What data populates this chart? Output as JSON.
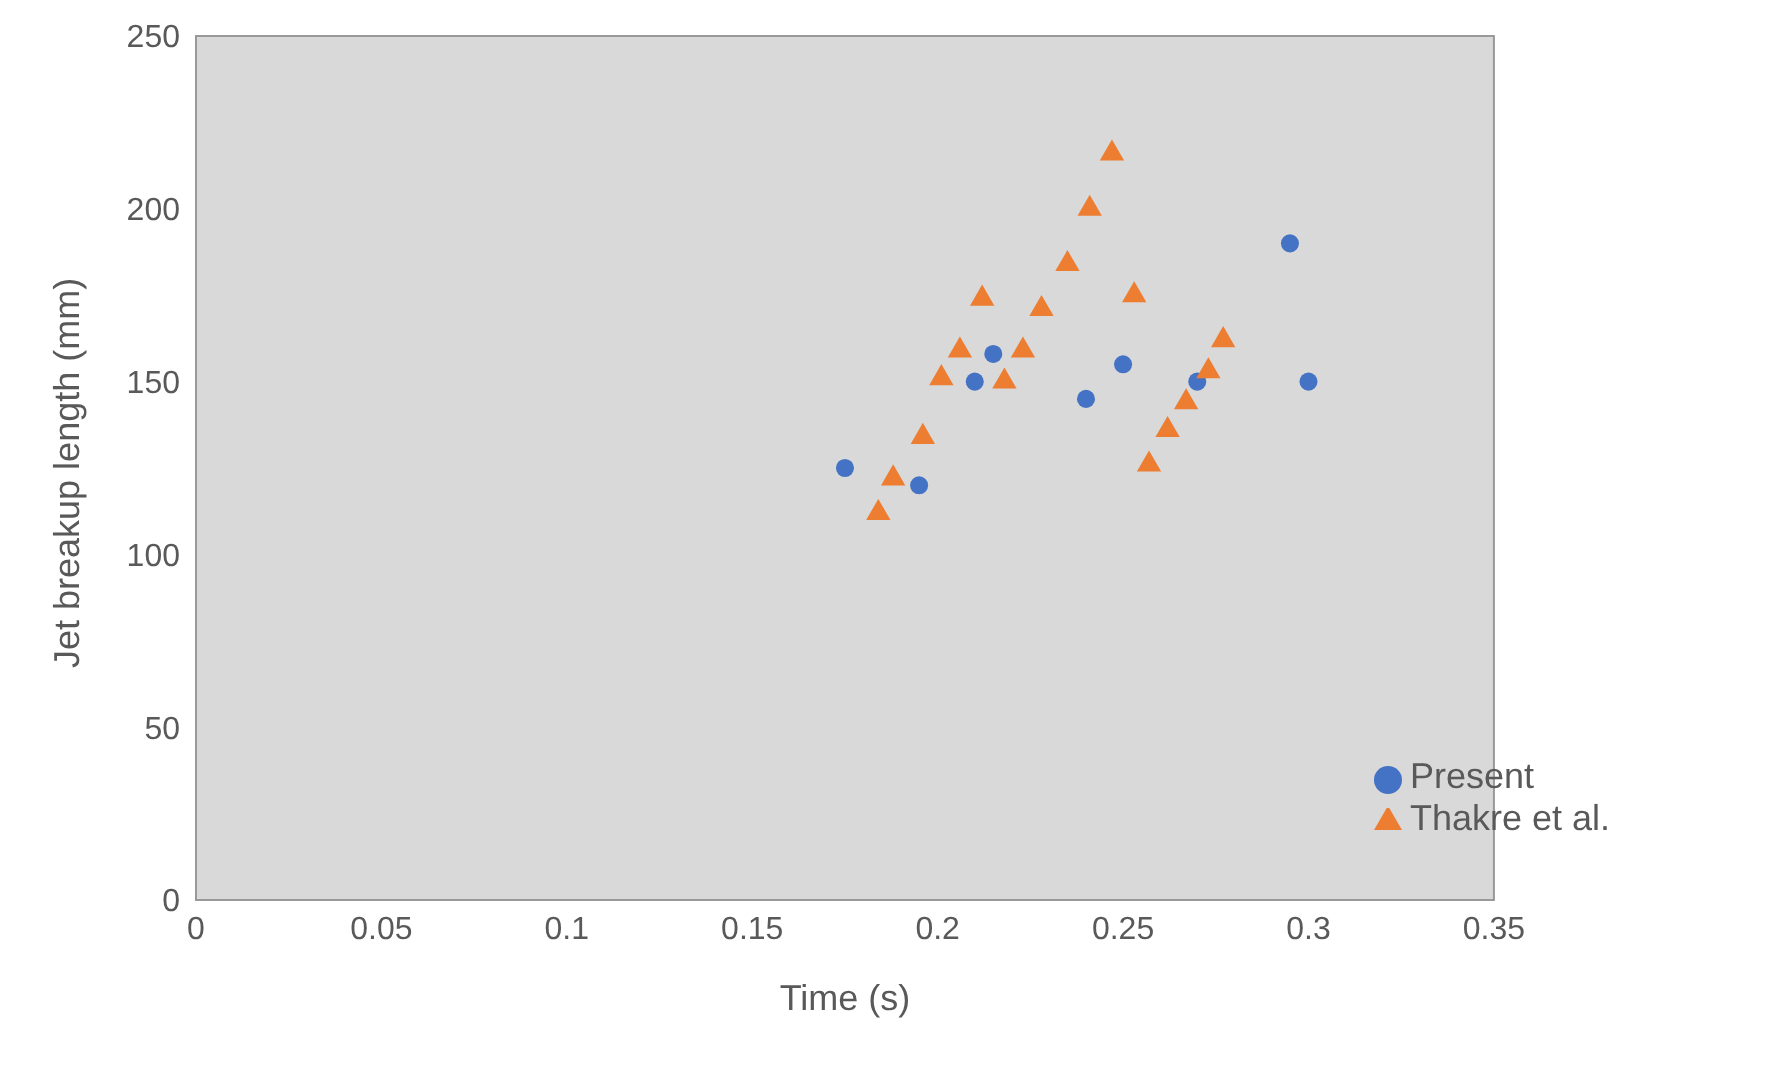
{
  "chart_data": {
    "type": "scatter",
    "xlabel": "Time (s)",
    "ylabel": "Jet breakup length (mm)",
    "xlim": [
      0,
      0.35
    ],
    "xticks": [
      0,
      0.05,
      0.1,
      0.15,
      0.2,
      0.25,
      0.3,
      0.35
    ],
    "ylim": [
      0,
      250
    ],
    "yticks": [
      0,
      50,
      100,
      150,
      200,
      250
    ],
    "legend": "bottom right",
    "series": [
      {
        "name": "Present",
        "color": "#4472c4",
        "marker": "circle",
        "x": [
          0.175,
          0.195,
          0.21,
          0.215,
          0.24,
          0.25,
          0.27,
          0.295,
          0.3
        ],
        "values": [
          125,
          120,
          150,
          158,
          145,
          155,
          150,
          190,
          150
        ]
      },
      {
        "name": "Thakre et al.",
        "color": "#ed7d31",
        "marker": "triangle",
        "x": [
          0.184,
          0.188,
          0.196,
          0.201,
          0.206,
          0.212,
          0.218,
          0.223,
          0.228,
          0.235,
          0.241,
          0.247,
          0.253,
          0.257,
          0.262,
          0.267,
          0.273,
          0.277
        ],
        "values": [
          112,
          122,
          134,
          151,
          159,
          174,
          150,
          159,
          171,
          184,
          200,
          216,
          175,
          126,
          136,
          144,
          153,
          162
        ]
      }
    ]
  }
}
